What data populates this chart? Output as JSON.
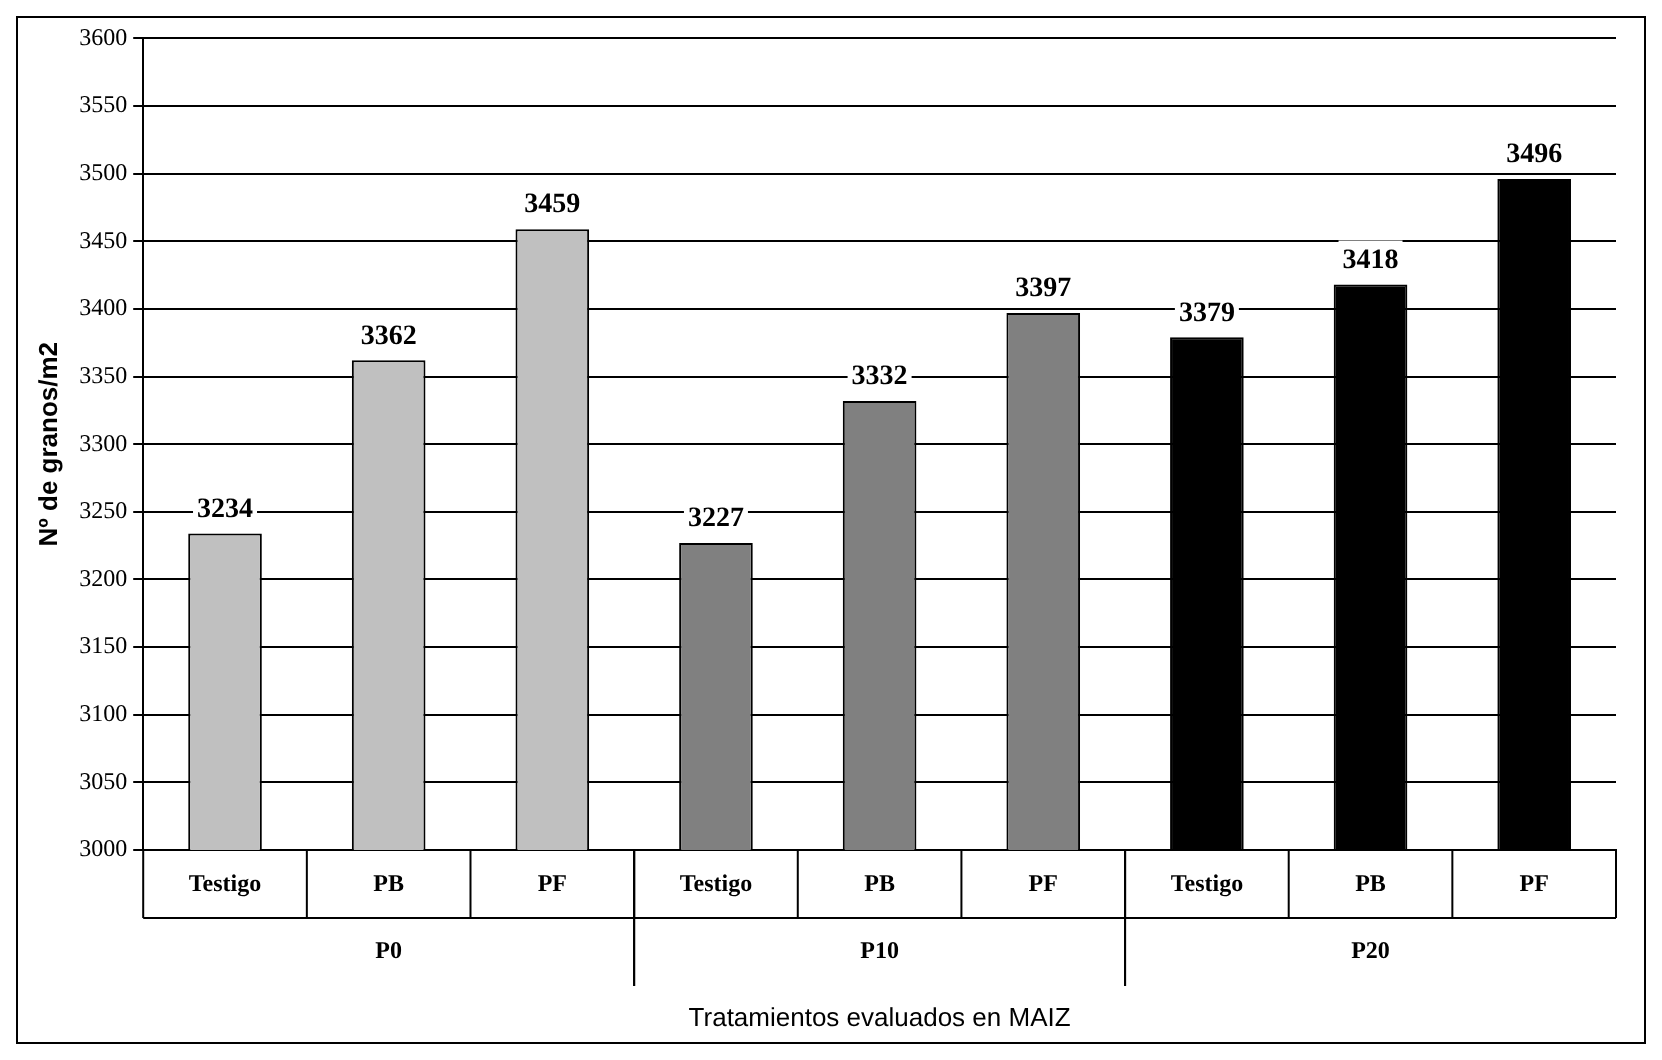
{
  "chart_data": {
    "type": "bar",
    "xlabel": "Tratamientos evaluados en MAIZ",
    "ylabel": "Nº de granos/m2",
    "categories": [
      "Testigo",
      "PB",
      "PF",
      "Testigo",
      "PB",
      "PF",
      "Testigo",
      "PB",
      "PF"
    ],
    "series": [
      {
        "name": "P0",
        "color": "#c0c0c0",
        "values": [
          3234,
          3362,
          3459,
          null,
          null,
          null,
          null,
          null,
          null
        ]
      },
      {
        "name": "P10",
        "color": "#808080",
        "values": [
          null,
          null,
          null,
          3227,
          3332,
          3397,
          null,
          null,
          null
        ]
      },
      {
        "name": "P20",
        "color": "#000000",
        "values": [
          null,
          null,
          null,
          null,
          null,
          null,
          3379,
          3418,
          3496
        ]
      }
    ],
    "ylim": [
      3000,
      3600
    ],
    "yticks": [
      3000,
      3050,
      3100,
      3150,
      3200,
      3250,
      3300,
      3350,
      3400,
      3450,
      3500,
      3550,
      3600
    ],
    "grid": "y",
    "legend": false,
    "data_labels": true
  }
}
